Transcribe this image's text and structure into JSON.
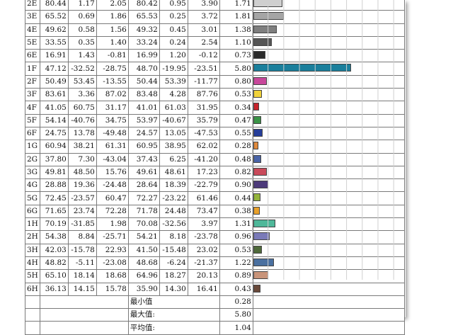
{
  "rows": [
    {
      "id": "2E",
      "c1": "80.44",
      "c2": "1.17",
      "c3": "2.05",
      "c4": "80.42",
      "c5": "0.95",
      "c6": "3.90",
      "de": "1.71",
      "val": 1.71,
      "color": "#cfcfcf"
    },
    {
      "id": "3E",
      "c1": "65.52",
      "c2": "0.69",
      "c3": "1.86",
      "c4": "65.53",
      "c5": "0.25",
      "c6": "3.72",
      "de": "1.81",
      "val": 1.81,
      "color": "#a5a5a5"
    },
    {
      "id": "4E",
      "c1": "49.62",
      "c2": "0.58",
      "c3": "1.56",
      "c4": "49.32",
      "c5": "0.45",
      "c6": "3.01",
      "de": "1.38",
      "val": 1.38,
      "color": "#7e7e7e"
    },
    {
      "id": "5E",
      "c1": "33.55",
      "c2": "0.35",
      "c3": "1.40",
      "c4": "33.24",
      "c5": "0.24",
      "c6": "2.54",
      "de": "1.10",
      "val": 1.1,
      "color": "#555555"
    },
    {
      "id": "6E",
      "c1": "16.91",
      "c2": "1.43",
      "c3": "-0.81",
      "c4": "16.99",
      "c5": "1.20",
      "c6": "-0.12",
      "de": "0.73",
      "val": 0.73,
      "color": "#2b2b2b"
    },
    {
      "id": "1F",
      "c1": "47.12",
      "c2": "-32.52",
      "c3": "-28.75",
      "c4": "48.70",
      "c5": "-19.95",
      "c6": "-23.51",
      "de": "5.80",
      "val": 5.8,
      "color": "#1a7f9c"
    },
    {
      "id": "2F",
      "c1": "50.49",
      "c2": "53.45",
      "c3": "-13.55",
      "c4": "50.44",
      "c5": "53.39",
      "c6": "-11.77",
      "de": "0.80",
      "val": 0.8,
      "color": "#c8479b"
    },
    {
      "id": "3F",
      "c1": "83.61",
      "c2": "3.36",
      "c3": "87.02",
      "c4": "83.48",
      "c5": "4.28",
      "c6": "87.76",
      "de": "0.53",
      "val": 0.53,
      "color": "#f0d23a"
    },
    {
      "id": "4F",
      "c1": "41.05",
      "c2": "60.75",
      "c3": "31.17",
      "c4": "41.01",
      "c5": "61.03",
      "c6": "31.95",
      "de": "0.34",
      "val": 0.34,
      "color": "#c8242c"
    },
    {
      "id": "5F",
      "c1": "54.14",
      "c2": "-40.76",
      "c3": "34.75",
      "c4": "53.97",
      "c5": "-40.67",
      "c6": "35.79",
      "de": "0.47",
      "val": 0.47,
      "color": "#3a9447"
    },
    {
      "id": "6F",
      "c1": "24.75",
      "c2": "13.78",
      "c3": "-49.48",
      "c4": "24.57",
      "c5": "13.05",
      "c6": "-47.53",
      "de": "0.55",
      "val": 0.55,
      "color": "#263e9a"
    },
    {
      "id": "1G",
      "c1": "60.94",
      "c2": "38.21",
      "c3": "61.31",
      "c4": "60.95",
      "c5": "38.95",
      "c6": "62.02",
      "de": "0.28",
      "val": 0.28,
      "color": "#e08a3c"
    },
    {
      "id": "2G",
      "c1": "37.80",
      "c2": "7.30",
      "c3": "-43.04",
      "c4": "37.43",
      "c5": "6.25",
      "c6": "-41.20",
      "de": "0.48",
      "val": 0.48,
      "color": "#4a64a8"
    },
    {
      "id": "3G",
      "c1": "49.81",
      "c2": "48.50",
      "c3": "15.76",
      "c4": "49.61",
      "c5": "48.61",
      "c6": "17.23",
      "de": "0.82",
      "val": 0.82,
      "color": "#c94a5a"
    },
    {
      "id": "4G",
      "c1": "28.88",
      "c2": "19.36",
      "c3": "-24.48",
      "c4": "28.64",
      "c5": "18.39",
      "c6": "-22.79",
      "de": "0.90",
      "val": 0.9,
      "color": "#4d3a7a"
    },
    {
      "id": "5G",
      "c1": "72.45",
      "c2": "-23.57",
      "c3": "60.47",
      "c4": "72.27",
      "c5": "-23.22",
      "c6": "61.46",
      "de": "0.44",
      "val": 0.44,
      "color": "#94b43c"
    },
    {
      "id": "6G",
      "c1": "71.65",
      "c2": "23.74",
      "c3": "72.28",
      "c4": "71.78",
      "c5": "24.48",
      "c6": "73.47",
      "de": "0.38",
      "val": 0.38,
      "color": "#e8a02a"
    },
    {
      "id": "1H",
      "c1": "70.19",
      "c2": "-31.85",
      "c3": "1.98",
      "c4": "70.08",
      "c5": "-32.56",
      "c6": "3.97",
      "de": "1.31",
      "val": 1.31,
      "color": "#4fb89a"
    },
    {
      "id": "2H",
      "c1": "54.38",
      "c2": "8.84",
      "c3": "-25.71",
      "c4": "54.21",
      "c5": "8.18",
      "c6": "-23.78",
      "de": "0.96",
      "val": 0.96,
      "color": "#7a7ab8"
    },
    {
      "id": "3H",
      "c1": "42.03",
      "c2": "-15.78",
      "c3": "22.93",
      "c4": "41.50",
      "c5": "-15.48",
      "c6": "23.02",
      "de": "0.53",
      "val": 0.53,
      "color": "#4f6a3a"
    },
    {
      "id": "4H",
      "c1": "48.82",
      "c2": "-5.11",
      "c3": "-23.08",
      "c4": "48.68",
      "c5": "-6.24",
      "c6": "-21.37",
      "de": "1.22",
      "val": 1.22,
      "color": "#4a70a0"
    },
    {
      "id": "5H",
      "c1": "65.10",
      "c2": "18.14",
      "c3": "18.68",
      "c4": "64.96",
      "c5": "18.27",
      "c6": "20.13",
      "de": "0.89",
      "val": 0.89,
      "color": "#c8947a"
    },
    {
      "id": "6H",
      "c1": "36.13",
      "c2": "14.15",
      "c3": "15.78",
      "c4": "35.90",
      "c5": "14.30",
      "c6": "16.41",
      "de": "0.43",
      "val": 0.43,
      "color": "#6a4a3a"
    }
  ],
  "summary": [
    {
      "label": "最小值",
      "value": "0.28"
    },
    {
      "label": "最大值:",
      "value": "5.80"
    },
    {
      "label": "平均值:",
      "value": "1.04"
    }
  ],
  "bar_scale_max": 9.0
}
